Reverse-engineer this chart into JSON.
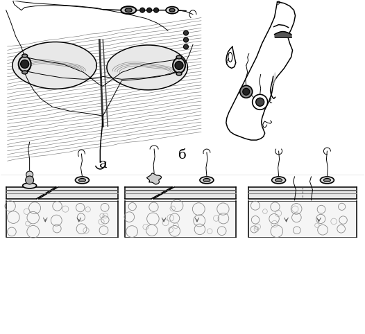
{
  "label_a": "а",
  "label_b": "б",
  "bg_color": "#ffffff",
  "line_color": "#000000",
  "label_fontsize": 14,
  "figsize": [
    5.26,
    4.82
  ],
  "dpi": 100
}
